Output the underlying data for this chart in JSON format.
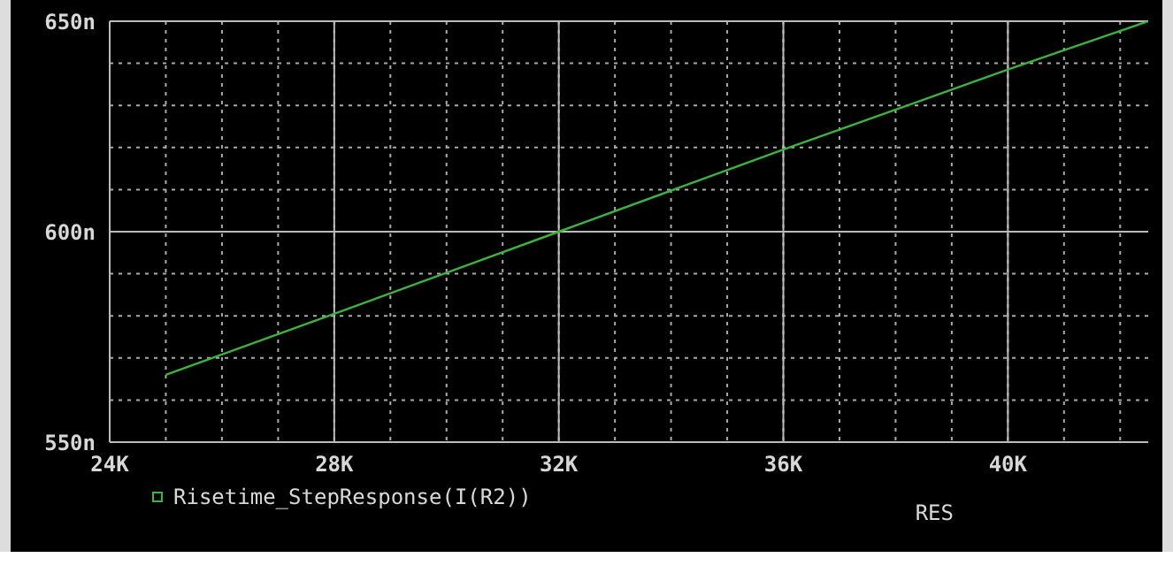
{
  "chart_data": {
    "type": "line",
    "xlabel": "RES",
    "xlim": [
      24000,
      42500
    ],
    "xticks": [
      {
        "value": 24000,
        "label": "24K"
      },
      {
        "value": 25000,
        "label": null
      },
      {
        "value": 26000,
        "label": null
      },
      {
        "value": 27000,
        "label": null
      },
      {
        "value": 28000,
        "label": "28K"
      },
      {
        "value": 29000,
        "label": null
      },
      {
        "value": 30000,
        "label": null
      },
      {
        "value": 31000,
        "label": null
      },
      {
        "value": 32000,
        "label": "32K"
      },
      {
        "value": 33000,
        "label": null
      },
      {
        "value": 34000,
        "label": null
      },
      {
        "value": 35000,
        "label": null
      },
      {
        "value": 36000,
        "label": "36K"
      },
      {
        "value": 37000,
        "label": null
      },
      {
        "value": 38000,
        "label": null
      },
      {
        "value": 39000,
        "label": null
      },
      {
        "value": 40000,
        "label": "40K"
      },
      {
        "value": 41000,
        "label": null
      },
      {
        "value": 42000,
        "label": null
      }
    ],
    "ylim": [
      550,
      650
    ],
    "yticks": [
      {
        "value": 550,
        "label": "550n"
      },
      {
        "value": 560,
        "label": null
      },
      {
        "value": 570,
        "label": null
      },
      {
        "value": 580,
        "label": null
      },
      {
        "value": 590,
        "label": null
      },
      {
        "value": 600,
        "label": "600n"
      },
      {
        "value": 610,
        "label": null
      },
      {
        "value": 620,
        "label": null
      },
      {
        "value": 630,
        "label": null
      },
      {
        "value": 640,
        "label": null
      },
      {
        "value": 650,
        "label": "650n"
      }
    ],
    "grid": true,
    "legend": "bottom left",
    "series": [
      {
        "name": "Risetime_StepResponse(I(R2))",
        "color": "#3cb43c",
        "x": [
          25000,
          28000,
          32000,
          36000,
          40000,
          42500
        ],
        "values": [
          566,
          580.5,
          600,
          619.5,
          638.5,
          650
        ]
      }
    ]
  }
}
